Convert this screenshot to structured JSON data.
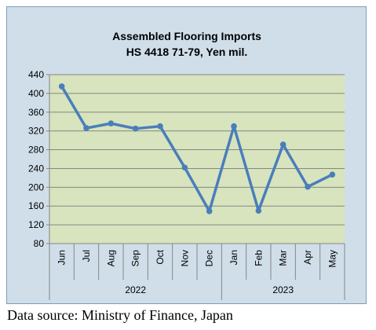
{
  "source_note": "Data source: Ministry of Finance, Japan",
  "chart_data": {
    "type": "line",
    "title": "Assembled Flooring Imports",
    "subtitle": "HS 4418 71-79, Yen mil.",
    "categories": [
      "Jun",
      "Jul",
      "Aug",
      "Sep",
      "Oct",
      "Nov",
      "Dec",
      "Jan",
      "Feb",
      "Mar",
      "Apr",
      "May"
    ],
    "groups": [
      {
        "label": "2022",
        "count": 7
      },
      {
        "label": "2023",
        "count": 5
      }
    ],
    "series": [
      {
        "values": [
          415,
          326,
          336,
          325,
          330,
          242,
          149,
          330,
          150,
          291,
          201,
          227
        ]
      }
    ],
    "yticks": [
      80,
      120,
      160,
      200,
      240,
      280,
      320,
      360,
      400,
      440
    ],
    "ylim": [
      80,
      440
    ],
    "grid": true,
    "legend": "none",
    "colors": {
      "line": "#4a7ebb",
      "plot_background": "#d7e4bd",
      "chart_background": "#cfdee9",
      "gridline": "#868686"
    }
  }
}
